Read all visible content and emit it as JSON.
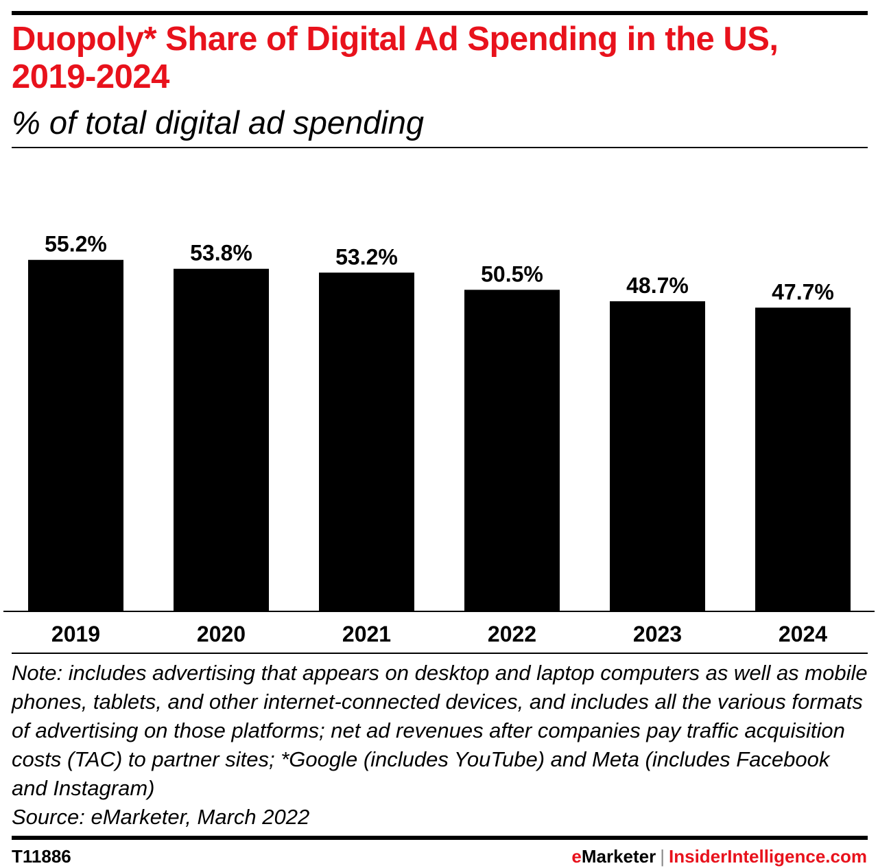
{
  "chart_data": {
    "type": "bar",
    "title": "Duopoly* Share of Digital Ad Spending in the US, 2019-2024",
    "subtitle": "% of total digital ad spending",
    "categories": [
      "2019",
      "2020",
      "2021",
      "2022",
      "2023",
      "2024"
    ],
    "values": [
      55.2,
      53.8,
      53.2,
      50.5,
      48.7,
      47.7
    ],
    "value_labels": [
      "55.2%",
      "53.8%",
      "53.2%",
      "50.5%",
      "48.7%",
      "47.7%"
    ],
    "xlabel": "",
    "ylabel": "",
    "ylim": [
      0,
      57
    ],
    "grid": false,
    "bar_color": "#000000",
    "title_color": "#e8121c"
  },
  "note": "Note: includes advertising that appears on desktop and laptop computers as well as mobile phones, tablets, and other internet-connected devices, and includes all the various formats of advertising on those platforms; net ad revenues after companies pay traffic acquisition costs (TAC) to partner sites; *Google (includes YouTube) and Meta (includes Facebook and Instagram)",
  "source": "Source: eMarketer, March 2022",
  "footer": {
    "id": "T11886",
    "brand_e": "e",
    "brand_rest": "Marketer",
    "separator": "|",
    "site": "InsiderIntelligence.com"
  }
}
